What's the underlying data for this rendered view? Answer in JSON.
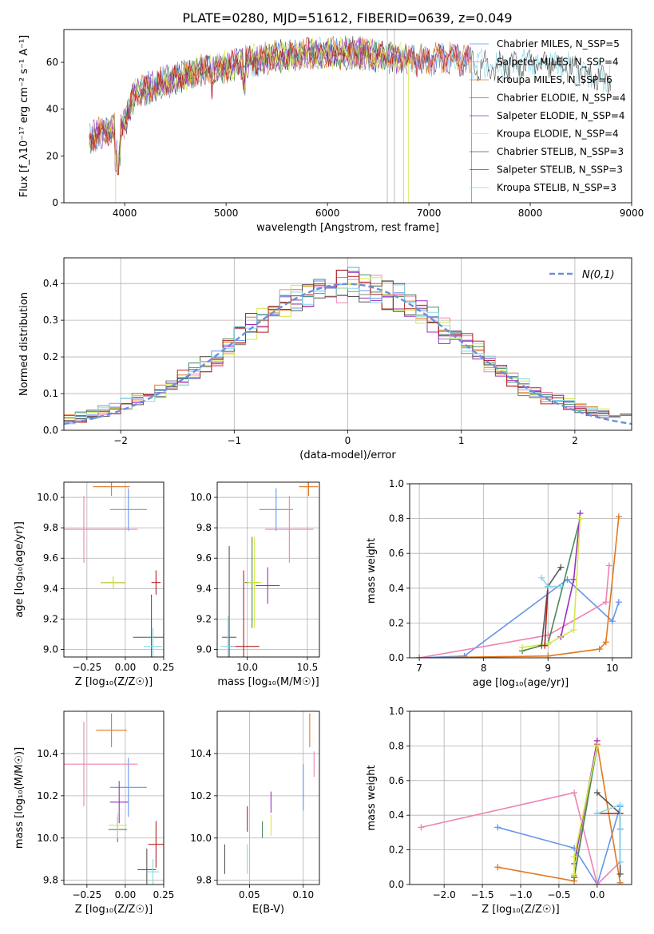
{
  "figure_title": "PLATE=0280, MJD=51612, FIBERID=0639, z=0.049",
  "model_colors": [
    "#6495ed",
    "#ee82b4",
    "#e07820",
    "#4a8a5a",
    "#9b30c0",
    "#d4e84a",
    "#555555",
    "#b22222",
    "#88d8e8"
  ],
  "chart_data": [
    {
      "type": "line",
      "name": "spectrum",
      "xlabel": "wavelength [Angstrom, rest frame]",
      "ylabel": "Flux [f_λ10⁻¹⁷ erg cm⁻² s⁻¹ A⁻¹]",
      "xlim": [
        3400,
        9000
      ],
      "ylim": [
        0,
        74
      ],
      "xticks": [
        4000,
        5000,
        6000,
        7000,
        8000,
        9000
      ],
      "yticks": [
        0,
        20,
        40,
        60
      ],
      "grid": false,
      "legend_position": "top-right",
      "continuum_x": [
        3650,
        3800,
        3900,
        4000,
        4100,
        4300,
        4500,
        4800,
        5000,
        5300,
        5600,
        6000,
        6300,
        6600,
        6800,
        7000,
        7200,
        7400,
        7600,
        7800,
        8000,
        8300,
        8500,
        8800
      ],
      "continuum_y": [
        27,
        31,
        32,
        34,
        47,
        50,
        53,
        57,
        58,
        61,
        63,
        64,
        64,
        62,
        61,
        61,
        62,
        60,
        58,
        58,
        60,
        59,
        56,
        53
      ],
      "series": [
        {
          "name": "Chabrier MILES, N_SSP=5",
          "end": 7420
        },
        {
          "name": "Salpeter MILES, N_SSP=4",
          "end": 7420
        },
        {
          "name": "Kroupa MILES, N_SSP=6",
          "end": 7420
        },
        {
          "name": "Chabrier ELODIE, N_SSP=4",
          "end": 6800
        },
        {
          "name": "Salpeter ELODIE, N_SSP=4",
          "end": 6800
        },
        {
          "name": "Kroupa ELODIE, N_SSP=4",
          "end": 6800
        },
        {
          "name": "Chabrier STELIB, N_SSP=3",
          "end": 8800
        },
        {
          "name": "Salpeter STELIB, N_SSP=3",
          "end": 7420
        },
        {
          "name": "Kroupa STELIB, N_SSP=3",
          "end": 8800
        }
      ]
    },
    {
      "type": "line",
      "name": "residual-histogram",
      "xlabel": "(data-model)/error",
      "ylabel": "Normed distribution",
      "xlim": [
        -2.5,
        2.5
      ],
      "ylim": [
        0,
        0.47
      ],
      "xticks": [
        -2,
        -1,
        0,
        1,
        2
      ],
      "yticks": [
        0.0,
        0.1,
        0.2,
        0.3,
        0.4
      ],
      "grid": true,
      "legend_position": "top-right",
      "legend_label": "N(0,1)",
      "bin_width": 0.1
    },
    {
      "type": "scatter",
      "name": "age-vs-Z",
      "xlabel": "Z [log₁₀(Z/Z☉)]",
      "ylabel": "age  [log₁₀(age/yr)]",
      "xlim": [
        -0.4,
        0.25
      ],
      "ylim": [
        8.95,
        10.1
      ],
      "xticks": [
        -0.25,
        0.0,
        0.25
      ],
      "yticks": [
        9.0,
        9.2,
        9.4,
        9.6,
        9.8,
        10.0
      ],
      "grid": true,
      "points": [
        {
          "x": 0.02,
          "y": 9.92,
          "xerr": 0.12,
          "yerr": 0.14
        },
        {
          "x": -0.27,
          "y": 9.79,
          "xerr": 0.35,
          "yerr": 0.22
        },
        {
          "x": -0.09,
          "y": 10.07,
          "xerr": 0.12,
          "yerr": 0.06
        },
        {
          "x": -0.08,
          "y": 9.44,
          "xerr": 0.08,
          "yerr": 0.04
        },
        {
          "x": -0.08,
          "y": 9.44,
          "xerr": 0.08,
          "yerr": 0.04
        },
        {
          "x": -0.08,
          "y": 9.44,
          "xerr": 0.08,
          "yerr": 0.04
        },
        {
          "x": 0.17,
          "y": 9.08,
          "xerr": 0.12,
          "yerr": 0.28
        },
        {
          "x": 0.2,
          "y": 9.44,
          "xerr": 0.03,
          "yerr": 0.08
        },
        {
          "x": 0.18,
          "y": 9.02,
          "xerr": 0.06,
          "yerr": 0.12
        }
      ]
    },
    {
      "type": "scatter",
      "name": "age-vs-mass",
      "xlabel": "mass [log₁₀(M/M☉)]",
      "ylabel": "",
      "xlim": [
        9.75,
        10.6
      ],
      "ylim": [
        8.95,
        10.1
      ],
      "xticks": [
        10.0,
        10.5
      ],
      "yticks": [
        9.0,
        9.2,
        9.4,
        9.6,
        9.8,
        10.0
      ],
      "grid": true,
      "points": [
        {
          "x": 10.24,
          "y": 9.92,
          "xerr": 0.14,
          "yerr": 0.14
        },
        {
          "x": 10.35,
          "y": 9.79,
          "xerr": 0.2,
          "yerr": 0.22
        },
        {
          "x": 10.51,
          "y": 10.07,
          "xerr": 0.08,
          "yerr": 0.06
        },
        {
          "x": 10.04,
          "y": 9.44,
          "xerr": 0.06,
          "yerr": 0.3
        },
        {
          "x": 10.17,
          "y": 9.42,
          "xerr": 0.1,
          "yerr": 0.12
        },
        {
          "x": 10.06,
          "y": 9.44,
          "xerr": 0.06,
          "yerr": 0.3
        },
        {
          "x": 9.85,
          "y": 9.08,
          "xerr": 0.06,
          "yerr": 0.6
        },
        {
          "x": 9.97,
          "y": 9.02,
          "xerr": 0.13,
          "yerr": 0.5
        },
        {
          "x": 9.84,
          "y": 9.02,
          "xerr": 0.06,
          "yerr": 0.2
        }
      ]
    },
    {
      "type": "line",
      "name": "mass-weight-vs-age",
      "xlabel": "age  [log₁₀(age/yr)]",
      "ylabel": "mass weight",
      "xlim": [
        6.85,
        10.3
      ],
      "ylim": [
        0,
        1.0
      ],
      "xticks": [
        7,
        8,
        9,
        10
      ],
      "yticks": [
        0.0,
        0.2,
        0.4,
        0.6,
        0.8,
        1.0
      ],
      "grid": true,
      "series": [
        {
          "name": "Chabrier MILES",
          "x": [
            7.0,
            7.7,
            9.3,
            10.0,
            10.1
          ],
          "y": [
            0.0,
            0.01,
            0.45,
            0.21,
            0.32
          ]
        },
        {
          "name": "Salpeter MILES",
          "x": [
            7.0,
            9.0,
            9.9,
            9.95
          ],
          "y": [
            0.0,
            0.13,
            0.32,
            0.53
          ]
        },
        {
          "name": "Kroupa MILES",
          "x": [
            7.0,
            9.0,
            9.8,
            9.9,
            10.1
          ],
          "y": [
            0.0,
            0.01,
            0.05,
            0.09,
            0.81
          ]
        },
        {
          "name": "Chabrier ELODIE",
          "x": [
            8.6,
            9.0,
            9.5
          ],
          "y": [
            0.04,
            0.08,
            0.8
          ]
        },
        {
          "name": "Salpeter ELODIE",
          "x": [
            9.2,
            9.4,
            9.5
          ],
          "y": [
            0.12,
            0.45,
            0.83
          ]
        },
        {
          "name": "Kroupa ELODIE",
          "x": [
            8.6,
            9.0,
            9.4,
            9.5
          ],
          "y": [
            0.06,
            0.08,
            0.16,
            0.8
          ]
        },
        {
          "name": "Chabrier STELIB",
          "x": [
            8.9,
            9.0,
            9.2
          ],
          "y": [
            0.07,
            0.41,
            0.52
          ]
        },
        {
          "name": "Salpeter STELIB",
          "x": [
            8.95,
            9.0
          ],
          "y": [
            0.07,
            0.41
          ]
        },
        {
          "name": "Kroupa STELIB",
          "x": [
            8.9,
            9.0,
            9.2
          ],
          "y": [
            0.46,
            0.41,
            0.41
          ]
        }
      ]
    },
    {
      "type": "scatter",
      "name": "mass-vs-Z",
      "xlabel": "Z [log₁₀(Z/Z☉)]",
      "ylabel": "mass [log₁₀(M/M☉)]",
      "xlim": [
        -0.4,
        0.25
      ],
      "ylim": [
        9.78,
        10.6
      ],
      "xticks": [
        -0.25,
        0.0,
        0.25
      ],
      "yticks": [
        9.8,
        10.0,
        10.2,
        10.4
      ],
      "grid": true,
      "points": [
        {
          "x": 0.02,
          "y": 10.24,
          "xerr": 0.12,
          "yerr": 0.14
        },
        {
          "x": -0.27,
          "y": 10.35,
          "xerr": 0.35,
          "yerr": 0.2
        },
        {
          "x": -0.09,
          "y": 10.51,
          "xerr": 0.1,
          "yerr": 0.08
        },
        {
          "x": -0.05,
          "y": 10.04,
          "xerr": 0.06,
          "yerr": 0.06
        },
        {
          "x": -0.04,
          "y": 10.17,
          "xerr": 0.06,
          "yerr": 0.1
        },
        {
          "x": -0.05,
          "y": 10.06,
          "xerr": 0.06,
          "yerr": 0.06
        },
        {
          "x": 0.14,
          "y": 9.85,
          "xerr": 0.06,
          "yerr": 0.1
        },
        {
          "x": 0.2,
          "y": 9.97,
          "xerr": 0.05,
          "yerr": 0.11
        },
        {
          "x": 0.18,
          "y": 9.84,
          "xerr": 0.04,
          "yerr": 0.06
        }
      ]
    },
    {
      "type": "scatter",
      "name": "mass-vs-EBV",
      "xlabel": "E(B-V)",
      "ylabel": "",
      "xlim": [
        0.02,
        0.115
      ],
      "ylim": [
        9.78,
        10.6
      ],
      "xticks": [
        0.05,
        0.1
      ],
      "yticks": [
        9.8,
        10.0,
        10.2,
        10.4
      ],
      "grid": true,
      "points": [
        {
          "x": 0.1,
          "y": 10.24,
          "xerr": 0,
          "yerr": 0.11
        },
        {
          "x": 0.11,
          "y": 10.35,
          "xerr": 0,
          "yerr": 0.06
        },
        {
          "x": 0.106,
          "y": 10.51,
          "xerr": 0,
          "yerr": 0.08
        },
        {
          "x": 0.062,
          "y": 10.04,
          "xerr": 0,
          "yerr": 0.04
        },
        {
          "x": 0.07,
          "y": 10.17,
          "xerr": 0,
          "yerr": 0.05
        },
        {
          "x": 0.07,
          "y": 10.06,
          "xerr": 0,
          "yerr": 0.05
        },
        {
          "x": 0.027,
          "y": 9.9,
          "xerr": 0,
          "yerr": 0.07
        },
        {
          "x": 0.048,
          "y": 10.09,
          "xerr": 0,
          "yerr": 0.06
        },
        {
          "x": 0.048,
          "y": 9.9,
          "xerr": 0,
          "yerr": 0.07
        }
      ]
    },
    {
      "type": "line",
      "name": "mass-weight-vs-Z",
      "xlabel": "Z [log₁₀(Z/Z☉)]",
      "ylabel": "mass weight",
      "xlim": [
        -2.45,
        0.45
      ],
      "ylim": [
        0,
        1.0
      ],
      "xticks": [
        -2.0,
        -1.5,
        -1.0,
        -0.5,
        0.0
      ],
      "yticks": [
        0.0,
        0.2,
        0.4,
        0.6,
        0.8,
        1.0
      ],
      "grid": true,
      "series": [
        {
          "name": "Chabrier MILES",
          "x": [
            -1.3,
            -0.3,
            0.0,
            0.3,
            0.3
          ],
          "y": [
            0.33,
            0.21,
            0.0,
            0.45,
            0.32
          ]
        },
        {
          "name": "Salpeter MILES",
          "x": [
            -2.3,
            -0.3,
            0.0,
            0.3
          ],
          "y": [
            0.33,
            0.53,
            0.0,
            0.13
          ]
        },
        {
          "name": "Kroupa MILES",
          "x": [
            -1.3,
            -0.3,
            -0.3,
            0.0,
            0.3
          ],
          "y": [
            0.1,
            0.02,
            0.05,
            0.81,
            0.01
          ]
        },
        {
          "name": "Chabrier ELODIE",
          "x": [
            -0.3,
            0.0
          ],
          "y": [
            0.04,
            0.8
          ]
        },
        {
          "name": "Salpeter ELODIE",
          "x": [
            -0.3,
            0.0
          ],
          "y": [
            0.12,
            0.83
          ]
        },
        {
          "name": "Kroupa ELODIE",
          "x": [
            -0.3,
            -0.3,
            0.0
          ],
          "y": [
            0.06,
            0.16,
            0.8
          ]
        },
        {
          "name": "Chabrier STELIB",
          "x": [
            0.0,
            0.3,
            0.3
          ],
          "y": [
            0.53,
            0.41,
            0.06
          ]
        },
        {
          "name": "Salpeter STELIB",
          "x": [
            0.0,
            0.3
          ],
          "y": [
            0.41,
            0.41
          ]
        },
        {
          "name": "Kroupa STELIB",
          "x": [
            0.0,
            0.3,
            0.3
          ],
          "y": [
            0.41,
            0.46,
            0.13
          ]
        }
      ]
    }
  ]
}
